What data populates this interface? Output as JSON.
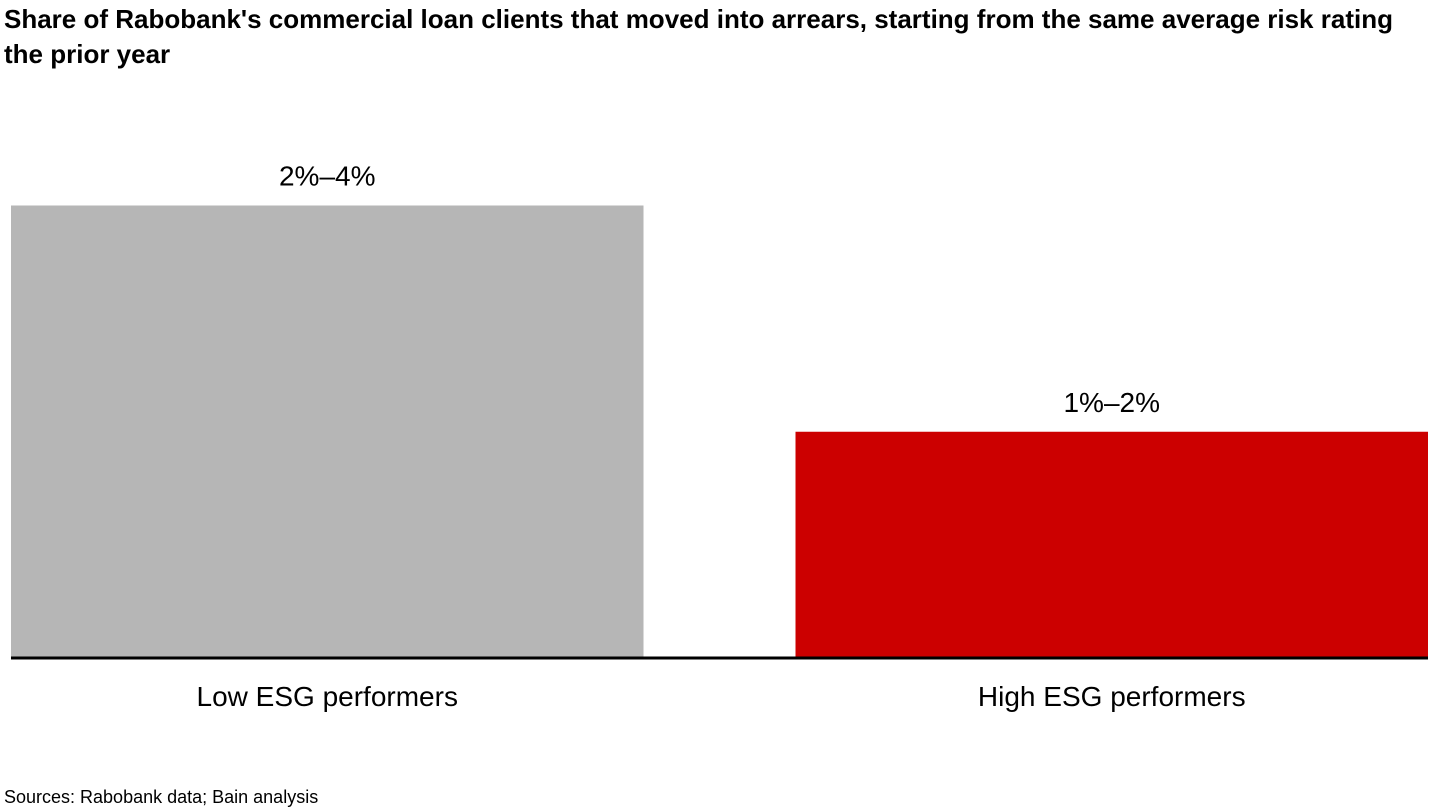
{
  "chart_data": {
    "type": "bar",
    "title": "Share of Rabobank's commercial loan clients that moved into arrears, starting from the same average risk rating the prior year",
    "categories": [
      "Low ESG performers",
      "High ESG performers"
    ],
    "values": [
      3,
      1.5
    ],
    "data_labels": [
      "2%–4%",
      "1%–2%"
    ],
    "colors": [
      "#b6b6b6",
      "#cc0000"
    ],
    "ylim": [
      0,
      3.6
    ],
    "grid": false,
    "legend": "none",
    "xlabel": "",
    "ylabel": ""
  },
  "footer": {
    "source": "Sources: Rabobank data; Bain analysis"
  }
}
